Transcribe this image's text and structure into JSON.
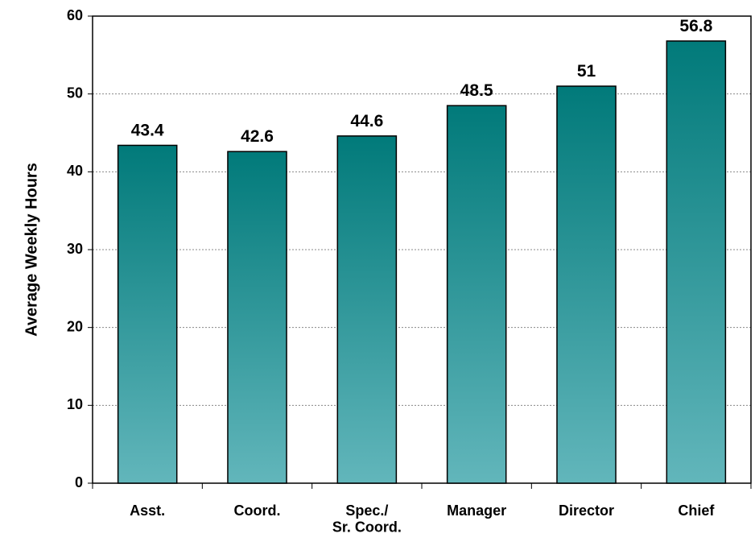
{
  "chart_data": {
    "type": "bar",
    "y_label": "Average Weekly Hours",
    "categories": [
      "Asst.",
      "Coord.",
      "Spec./\nSr. Coord.",
      "Manager",
      "Director",
      "Chief"
    ],
    "values": [
      43.4,
      42.6,
      44.6,
      48.5,
      51,
      56.8
    ],
    "gradient": [
      "#017a7a",
      "#62b6bb"
    ],
    "ylim": [
      0,
      60
    ],
    "yticks": [
      0,
      10,
      20,
      30,
      40,
      50,
      60
    ],
    "grid": true
  }
}
